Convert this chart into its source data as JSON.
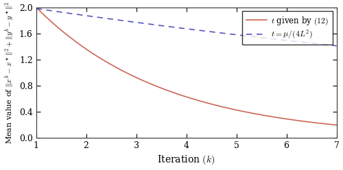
{
  "title": "",
  "xlabel": "Iteration $(k)$",
  "ylabel": "Mean value of $\\|x^k - x^\\star\\|^2 + \\|y^k - y^\\star\\|^2$",
  "xlim": [
    1,
    7
  ],
  "ylim": [
    0,
    2.0
  ],
  "yticks": [
    0,
    0.4,
    0.8,
    1.2,
    1.6,
    2.0
  ],
  "xticks": [
    1,
    2,
    3,
    4,
    5,
    6,
    7
  ],
  "line1_label": "$t$ given by $(12)$",
  "line1_color": "#cc6655",
  "line2_label": "$t = \\mu/(4L^2)$",
  "line2_color": "#5555bb",
  "line1_start": 2.0,
  "line1_decay": 0.68,
  "line2_start": 1.98,
  "line2_decay": 0.945,
  "figsize": [
    5.0,
    2.48
  ],
  "dpi": 100
}
